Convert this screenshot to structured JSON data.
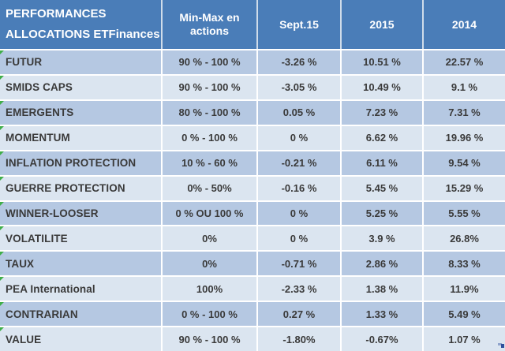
{
  "colors": {
    "header_blue": "#4a7db8",
    "header_divider": "#cfdcea",
    "band_dark": "#b5c8e2",
    "band_light": "#dbe5f0",
    "grid_white": "#ffffff",
    "text_dark": "#3a3a3a",
    "header_text": "#ffffff",
    "flag_green": "#3fae49",
    "corner_dark_blue": "#2d4f9b",
    "corner_light_blue": "#8fa3cc"
  },
  "icons": {
    "row_flag": "error-flag-icon",
    "bottom_right": "smart-tag-icon"
  },
  "chart_data": {
    "type": "table",
    "title": "PERFORMANCES ALLOCATIONS ETFinances",
    "header": {
      "col1_line1": "PERFORMANCES",
      "col1_line2": "ALLOCATIONS ETFinances",
      "value_columns": [
        "Min-Max en actions",
        "Sept.15",
        "2015",
        "2014"
      ]
    },
    "rows": [
      [
        "FUTUR",
        "90 % - 100 %",
        "-3.26 %",
        "10.51 %",
        "22.57 %"
      ],
      [
        "SMIDS CAPS",
        "90 % - 100 %",
        "-3.05 %",
        "10.49 %",
        "9.1 %"
      ],
      [
        "EMERGENTS",
        "80 % - 100 %",
        "0.05 %",
        "7.23 %",
        "7.31 %"
      ],
      [
        "MOMENTUM",
        "0 % - 100 %",
        "0 %",
        "6.62 %",
        "19.96 %"
      ],
      [
        "INFLATION PROTECTION",
        "10 % - 60 %",
        "-0.21 %",
        "6.11 %",
        "9.54 %"
      ],
      [
        "GUERRE PROTECTION",
        "0% - 50%",
        "-0.16 %",
        "5.45 %",
        "15.29 %"
      ],
      [
        "WINNER-LOOSER",
        "0 % OU 100 %",
        "0 %",
        "5.25 %",
        "5.55 %"
      ],
      [
        "VOLATILITE",
        "0%",
        "0 %",
        "3.9 %",
        "26.8%"
      ],
      [
        "TAUX",
        "0%",
        "-0.71 %",
        "2.86 %",
        "8.33 %"
      ],
      [
        "PEA International",
        "100%",
        "-2.33 %",
        "1.38 %",
        "11.9%"
      ],
      [
        "CONTRARIAN",
        "0 % - 100 %",
        "0.27 %",
        "1.33 %",
        "5.49 %"
      ],
      [
        "VALUE",
        "90 % - 100 %",
        "-1.80%",
        "-0.67%",
        "1.07 %"
      ]
    ]
  }
}
